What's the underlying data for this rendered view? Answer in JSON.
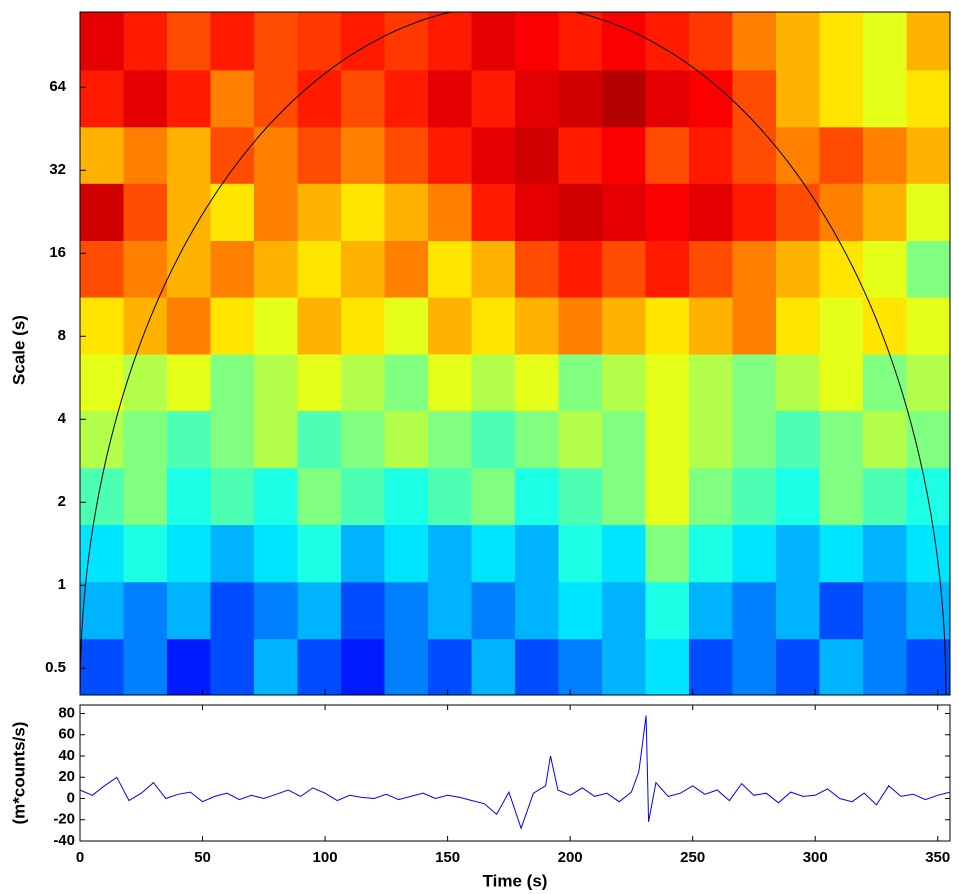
{
  "chart_data": [
    {
      "type": "heatmap",
      "ylabel": "Scale (s)",
      "colormap": "jet",
      "yscale": "log",
      "xlim": [
        0,
        355
      ],
      "xticks": [
        0,
        50,
        100,
        150,
        200,
        250,
        300,
        350
      ],
      "ylim": [
        0.4,
        120
      ],
      "yticks": [
        0.5,
        1,
        2,
        4,
        8,
        16,
        32,
        64
      ],
      "xbins": [
        0,
        17.75,
        35.5,
        53.25,
        71,
        88.75,
        106.5,
        124.25,
        142,
        159.75,
        177.5,
        195.25,
        213,
        230.75,
        248.5,
        266.25,
        284,
        301.75,
        319.5,
        337.25,
        355
      ],
      "ybins": [
        0.4,
        0.64,
        1.03,
        1.66,
        2.67,
        4.3,
        6.9,
        11.1,
        17.8,
        28.7,
        46,
        74,
        120
      ],
      "z": [
        [
          0.2,
          0.25,
          0.15,
          0.2,
          0.3,
          0.2,
          0.15,
          0.25,
          0.2,
          0.3,
          0.2,
          0.25,
          0.3,
          0.35,
          0.2,
          0.25,
          0.2,
          0.3,
          0.25,
          0.2
        ],
        [
          0.3,
          0.25,
          0.3,
          0.2,
          0.25,
          0.3,
          0.2,
          0.25,
          0.3,
          0.25,
          0.3,
          0.35,
          0.3,
          0.4,
          0.3,
          0.25,
          0.3,
          0.2,
          0.25,
          0.3
        ],
        [
          0.35,
          0.4,
          0.35,
          0.3,
          0.35,
          0.4,
          0.3,
          0.35,
          0.3,
          0.35,
          0.3,
          0.4,
          0.35,
          0.5,
          0.4,
          0.35,
          0.3,
          0.35,
          0.3,
          0.35
        ],
        [
          0.45,
          0.5,
          0.4,
          0.45,
          0.4,
          0.5,
          0.45,
          0.4,
          0.45,
          0.5,
          0.4,
          0.45,
          0.5,
          0.6,
          0.5,
          0.45,
          0.4,
          0.5,
          0.45,
          0.4
        ],
        [
          0.55,
          0.5,
          0.45,
          0.5,
          0.55,
          0.45,
          0.5,
          0.55,
          0.5,
          0.45,
          0.5,
          0.55,
          0.5,
          0.6,
          0.55,
          0.5,
          0.45,
          0.5,
          0.55,
          0.5
        ],
        [
          0.6,
          0.55,
          0.6,
          0.5,
          0.55,
          0.6,
          0.55,
          0.5,
          0.6,
          0.55,
          0.6,
          0.5,
          0.55,
          0.6,
          0.55,
          0.5,
          0.55,
          0.6,
          0.5,
          0.55
        ],
        [
          0.65,
          0.7,
          0.75,
          0.65,
          0.6,
          0.7,
          0.65,
          0.6,
          0.7,
          0.65,
          0.7,
          0.75,
          0.7,
          0.65,
          0.7,
          0.75,
          0.65,
          0.6,
          0.65,
          0.6
        ],
        [
          0.8,
          0.75,
          0.7,
          0.75,
          0.7,
          0.65,
          0.7,
          0.75,
          0.65,
          0.7,
          0.8,
          0.85,
          0.8,
          0.85,
          0.8,
          0.75,
          0.7,
          0.65,
          0.6,
          0.5
        ],
        [
          0.92,
          0.8,
          0.7,
          0.65,
          0.75,
          0.7,
          0.65,
          0.7,
          0.75,
          0.85,
          0.9,
          0.92,
          0.9,
          0.88,
          0.9,
          0.85,
          0.8,
          0.75,
          0.7,
          0.6
        ],
        [
          0.7,
          0.75,
          0.7,
          0.8,
          0.75,
          0.8,
          0.75,
          0.8,
          0.85,
          0.9,
          0.92,
          0.85,
          0.88,
          0.8,
          0.85,
          0.8,
          0.75,
          0.8,
          0.75,
          0.7
        ],
        [
          0.85,
          0.9,
          0.85,
          0.75,
          0.8,
          0.85,
          0.8,
          0.85,
          0.9,
          0.85,
          0.9,
          0.92,
          0.95,
          0.9,
          0.88,
          0.8,
          0.7,
          0.65,
          0.6,
          0.65
        ],
        [
          0.9,
          0.85,
          0.8,
          0.85,
          0.8,
          0.82,
          0.85,
          0.82,
          0.85,
          0.9,
          0.88,
          0.85,
          0.88,
          0.85,
          0.82,
          0.75,
          0.7,
          0.65,
          0.6,
          0.7
        ]
      ]
    },
    {
      "type": "line",
      "xlabel": "Time (s)",
      "ylabel": "(m*counts/s)",
      "xlim": [
        0,
        355
      ],
      "xticks": [
        0,
        50,
        100,
        150,
        200,
        250,
        300,
        350
      ],
      "ylim": [
        -40,
        88
      ],
      "yticks": [
        -40,
        -20,
        0,
        20,
        40,
        60,
        80
      ],
      "x": [
        0,
        5,
        10,
        15,
        20,
        25,
        30,
        35,
        40,
        45,
        50,
        55,
        60,
        65,
        70,
        75,
        80,
        85,
        90,
        95,
        100,
        105,
        110,
        115,
        120,
        125,
        130,
        135,
        140,
        145,
        150,
        155,
        160,
        165,
        170,
        175,
        180,
        185,
        190,
        192,
        195,
        200,
        205,
        210,
        215,
        220,
        225,
        228,
        231,
        232,
        235,
        240,
        245,
        250,
        255,
        260,
        265,
        270,
        275,
        280,
        285,
        290,
        295,
        300,
        305,
        310,
        315,
        320,
        325,
        330,
        335,
        340,
        345,
        350,
        355
      ],
      "series": [
        {
          "color": "#0000ff",
          "values": [
            8,
            3,
            12,
            20,
            -2,
            5,
            15,
            0,
            4,
            6,
            -3,
            2,
            5,
            -1,
            3,
            0,
            4,
            8,
            2,
            10,
            5,
            -2,
            3,
            1,
            0,
            4,
            -1,
            2,
            5,
            0,
            3,
            1,
            -2,
            -5,
            -15,
            6,
            -28,
            5,
            12,
            40,
            8,
            3,
            10,
            2,
            5,
            -3,
            6,
            25,
            78,
            -22,
            15,
            2,
            5,
            12,
            4,
            8,
            -2,
            14,
            3,
            5,
            -4,
            6,
            2,
            3,
            9,
            0,
            -3,
            5,
            -6,
            12,
            2,
            4,
            -1,
            3,
            6
          ]
        }
      ]
    }
  ]
}
